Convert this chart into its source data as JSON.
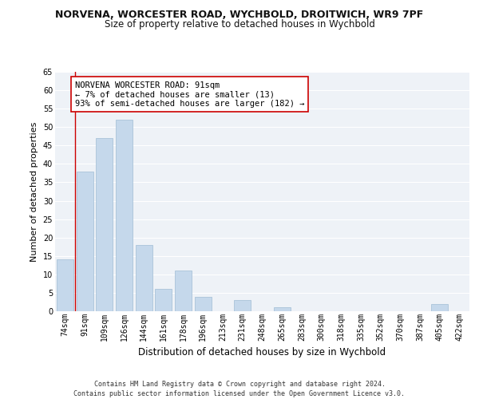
{
  "title1": "NORVENA, WORCESTER ROAD, WYCHBOLD, DROITWICH, WR9 7PF",
  "title2": "Size of property relative to detached houses in Wychbold",
  "xlabel": "Distribution of detached houses by size in Wychbold",
  "ylabel": "Number of detached properties",
  "categories": [
    "74sqm",
    "91sqm",
    "109sqm",
    "126sqm",
    "144sqm",
    "161sqm",
    "178sqm",
    "196sqm",
    "213sqm",
    "231sqm",
    "248sqm",
    "265sqm",
    "283sqm",
    "300sqm",
    "318sqm",
    "335sqm",
    "352sqm",
    "370sqm",
    "387sqm",
    "405sqm",
    "422sqm"
  ],
  "values": [
    14,
    38,
    47,
    52,
    18,
    6,
    11,
    4,
    0,
    3,
    0,
    1,
    0,
    0,
    0,
    0,
    0,
    0,
    0,
    2,
    0
  ],
  "bar_color": "#c5d8eb",
  "bar_edge_color": "#a0bdd4",
  "highlight_x": "91sqm",
  "highlight_line_color": "#cc0000",
  "ylim": [
    0,
    65
  ],
  "yticks": [
    0,
    5,
    10,
    15,
    20,
    25,
    30,
    35,
    40,
    45,
    50,
    55,
    60,
    65
  ],
  "annotation_text": "NORVENA WORCESTER ROAD: 91sqm\n← 7% of detached houses are smaller (13)\n93% of semi-detached houses are larger (182) →",
  "annotation_box_color": "#ffffff",
  "annotation_box_edge": "#cc0000",
  "bg_color": "#eef2f7",
  "grid_color": "#ffffff",
  "footer": "Contains HM Land Registry data © Crown copyright and database right 2024.\nContains public sector information licensed under the Open Government Licence v3.0.",
  "title1_fontsize": 9,
  "title2_fontsize": 8.5,
  "xlabel_fontsize": 8.5,
  "ylabel_fontsize": 8,
  "tick_fontsize": 7,
  "annotation_fontsize": 7.5,
  "footer_fontsize": 6
}
